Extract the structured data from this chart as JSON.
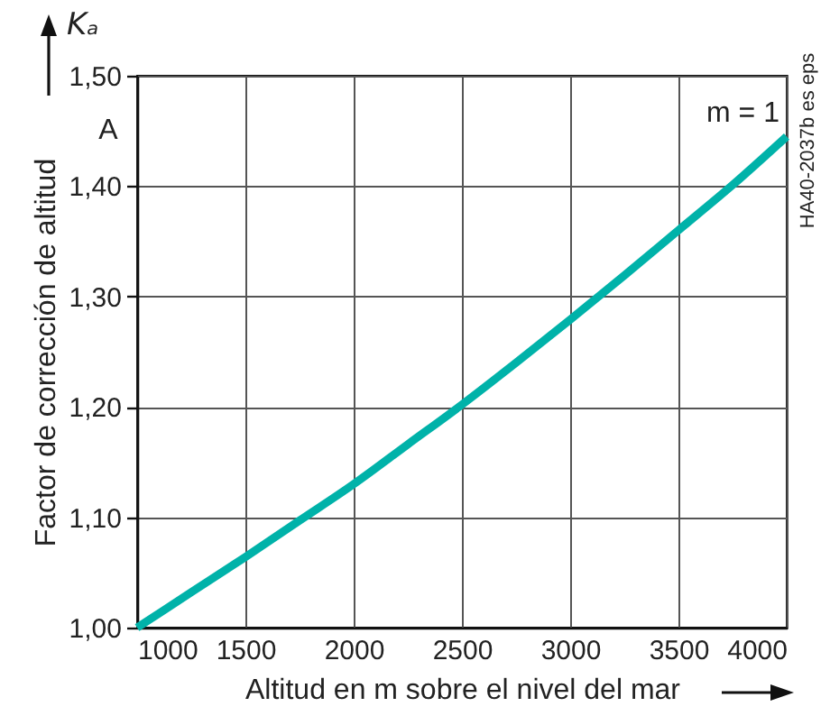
{
  "chart_data": {
    "type": "line",
    "xlabel": "Altitud en m sobre el nivel del mar",
    "ylabel": "Factor de corrección de altitud",
    "x": [
      1000,
      1250,
      1500,
      1750,
      2000,
      2250,
      2500,
      2750,
      3000,
      3250,
      3500,
      3750,
      4000
    ],
    "series": [
      {
        "name": "m = 1",
        "color": "#00b2a9",
        "values": [
          1.0,
          1.032,
          1.064,
          1.097,
          1.13,
          1.166,
          1.202,
          1.24,
          1.279,
          1.319,
          1.36,
          1.401,
          1.445
        ]
      }
    ],
    "xlim": [
      1000,
      4000
    ],
    "xticks": [
      1000,
      1500,
      2000,
      2500,
      3000,
      3500,
      4000
    ],
    "ylim": [
      1.0,
      1.5
    ],
    "yticks": [
      {
        "value": 1.0,
        "label": "1,00"
      },
      {
        "value": 1.1,
        "label": "1,10"
      },
      {
        "value": 1.2,
        "label": "1,20"
      },
      {
        "value": 1.3,
        "label": "1,30"
      },
      {
        "value": 1.4,
        "label": "1,40"
      },
      {
        "value": 1.5,
        "label": "1,50"
      }
    ],
    "grid": true,
    "annotations": [
      "Kₐ",
      "A",
      "HA40-2037b es eps"
    ]
  }
}
